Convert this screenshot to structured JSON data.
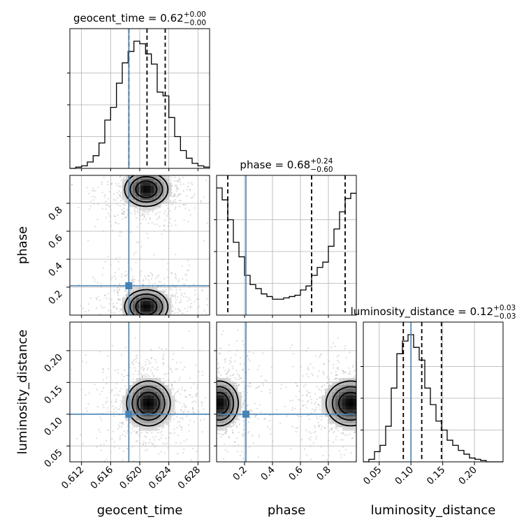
{
  "chart_data": {
    "type": "corner",
    "parameters": [
      {
        "key": "geocent_time",
        "label": "geocent_time",
        "range": [
          0.6104,
          0.6296
        ],
        "ticks": [
          0.612,
          0.616,
          0.62,
          0.624,
          0.628
        ],
        "tick_labels": [
          "0.612",
          "0.616",
          "0.620",
          "0.624",
          "0.628"
        ],
        "injection": 0.6185,
        "title": {
          "main": "geocent_time = 0.62",
          "plus": "+0.00",
          "minus": "−0.00"
        },
        "quantiles": [
          0.6185,
          0.621,
          0.6235
        ],
        "hist": {
          "start": 0.6104,
          "width": 0.0008,
          "counts": [
            0.0,
            0.01,
            0.02,
            0.05,
            0.1,
            0.2,
            0.38,
            0.48,
            0.67,
            0.83,
            0.92,
            1.0,
            0.98,
            0.9,
            0.82,
            0.6,
            0.57,
            0.4,
            0.25,
            0.14,
            0.08,
            0.04,
            0.02,
            0.01
          ]
        }
      },
      {
        "key": "phase",
        "label": "phase",
        "range": [
          0.0,
          1.0
        ],
        "ticks": [
          0.2,
          0.4,
          0.6,
          0.8
        ],
        "tick_labels": [
          "0.2",
          "0.4",
          "0.6",
          "0.8"
        ],
        "injection": 0.21,
        "title": {
          "main": "phase = 0.68",
          "plus": "+0.24",
          "minus": "−0.60"
        },
        "quantiles": [
          0.08,
          0.68,
          0.92
        ],
        "hist": {
          "start": 0.0,
          "width": 0.04,
          "counts": [
            0.96,
            0.87,
            0.72,
            0.55,
            0.44,
            0.3,
            0.23,
            0.2,
            0.16,
            0.14,
            0.12,
            0.12,
            0.13,
            0.14,
            0.15,
            0.19,
            0.22,
            0.3,
            0.36,
            0.4,
            0.52,
            0.65,
            0.78,
            0.88,
            0.92
          ]
        }
      },
      {
        "key": "luminosity_distance",
        "label": "luminosity_distance",
        "range": [
          0.025,
          0.245
        ],
        "ticks": [
          0.05,
          0.1,
          0.15,
          0.2
        ],
        "tick_labels": [
          "0.05",
          "0.10",
          "0.15",
          "0.20"
        ],
        "injection": 0.1,
        "title": {
          "main": "luminosity_distance = 0.12",
          "plus": "+0.03",
          "minus": "−0.03"
        },
        "quantiles": [
          0.088,
          0.117,
          0.148
        ],
        "hist": {
          "start": 0.025,
          "width": 0.0088,
          "counts": [
            0.0,
            0.02,
            0.08,
            0.13,
            0.28,
            0.58,
            0.85,
            0.95,
            1.0,
            0.9,
            0.8,
            0.58,
            0.45,
            0.32,
            0.25,
            0.17,
            0.13,
            0.09,
            0.06,
            0.03,
            0.02,
            0.01,
            0.0,
            0.0,
            0.0
          ]
        }
      }
    ],
    "panels_2d": [
      {
        "x": "geocent_time",
        "y": "phase",
        "modes": [
          {
            "center": [
              0.6209,
              0.9
            ],
            "sigma": [
              0.0022,
              0.09
            ]
          },
          {
            "center": [
              0.6209,
              0.06
            ],
            "sigma": [
              0.0022,
              0.09
            ]
          }
        ],
        "contour_levels": [
          0.4,
          0.6,
          0.8
        ]
      },
      {
        "x": "geocent_time",
        "y": "luminosity_distance",
        "modes": [
          {
            "center": [
              0.6212,
              0.117
            ],
            "sigma": [
              0.0022,
              0.026
            ]
          }
        ],
        "contour_levels": [
          0.4,
          0.6,
          0.8
        ]
      },
      {
        "x": "phase",
        "y": "luminosity_distance",
        "modes": [
          {
            "center": [
              0.96,
              0.117
            ],
            "sigma": [
              0.13,
              0.026
            ]
          },
          {
            "center": [
              0.02,
              0.117
            ],
            "sigma": [
              0.1,
              0.026
            ]
          }
        ],
        "contour_levels": [
          0.4,
          0.6,
          0.8
        ]
      }
    ],
    "injection_color": "#4682b4",
    "quantile_style": "dashed",
    "grid": true
  }
}
